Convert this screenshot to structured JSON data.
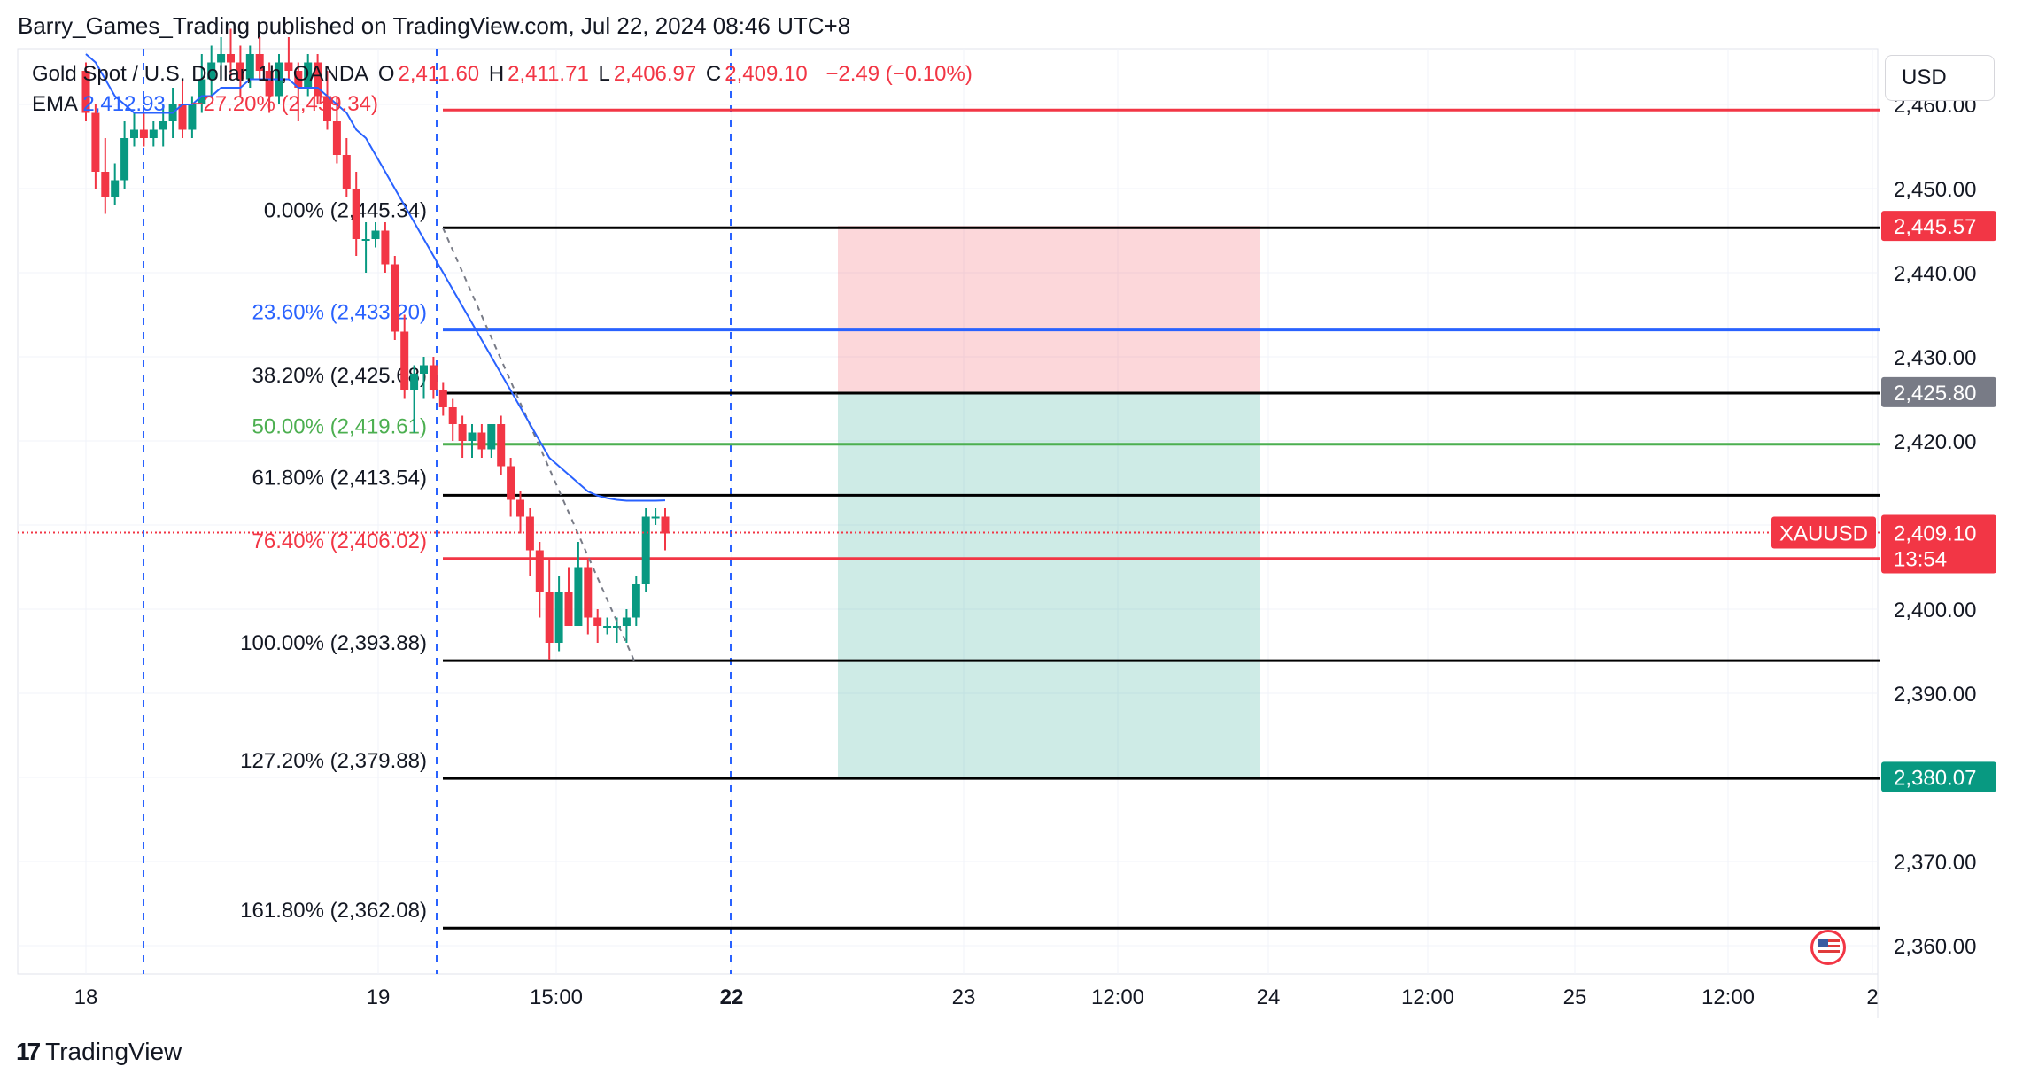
{
  "header": {
    "publisher_line": "Barry_Games_Trading published on TradingView.com, Jul 22, 2024 08:46 UTC+8"
  },
  "symbol_bar": {
    "title": "Gold Spot / U.S. Dollar, 1h, OANDA",
    "o_label": "O",
    "o_value": "2,411.60",
    "h_label": "H",
    "h_value": "2,411.71",
    "l_label": "L",
    "l_value": "2,406.97",
    "c_label": "C",
    "c_value": "2,409.10",
    "change": "−2.49 (−0.10%)",
    "ema_label": "EMA",
    "ema_value": "2,412.93",
    "fib_top_label": "−27.20% (2,459.34)"
  },
  "currency_button": "USD",
  "footer": {
    "brand": "TradingView",
    "logo_glyph": "17"
  },
  "colors": {
    "up": "#089981",
    "down": "#f23645",
    "ema": "#2962ff",
    "fib_blue": "#2962ff",
    "fib_green": "#4caf50",
    "fib_red": "#f23645"
  },
  "chart_data": {
    "type": "candlestick",
    "symbol": "XAUUSD",
    "interval": "1h",
    "ylim": [
      2355,
      2465
    ],
    "y_ticks": [
      2360,
      2370,
      2380,
      2390,
      2400,
      2410,
      2420,
      2430,
      2440,
      2450,
      2460
    ],
    "y_tick_labels": [
      "2,360.00",
      "2,370.00",
      "2,380.00",
      "2,390.00",
      "2,400.00",
      "2,410.00",
      "2,420.00",
      "2,430.00",
      "2,440.00",
      "2,450.00",
      "2,460.00"
    ],
    "x_tick_labels": [
      "18",
      "19",
      "15:00",
      "22",
      "23",
      "12:00",
      "24",
      "12:00",
      "25",
      "12:00",
      "2"
    ],
    "candles": [
      [
        2464,
        2465,
        2458,
        2459
      ],
      [
        2459,
        2460,
        2450,
        2452
      ],
      [
        2452,
        2456,
        2447,
        2449
      ],
      [
        2449,
        2453,
        2448,
        2451
      ],
      [
        2451,
        2458,
        2450,
        2456
      ],
      [
        2456,
        2459,
        2455,
        2457
      ],
      [
        2457,
        2459,
        2455,
        2456
      ],
      [
        2456,
        2458,
        2455,
        2457
      ],
      [
        2457,
        2460,
        2455,
        2458
      ],
      [
        2458,
        2462,
        2456,
        2460
      ],
      [
        2460,
        2463,
        2456,
        2457
      ],
      [
        2457,
        2461,
        2456,
        2460
      ],
      [
        2460,
        2466,
        2459,
        2463
      ],
      [
        2463,
        2467,
        2461,
        2465
      ],
      [
        2465,
        2468,
        2463,
        2466
      ],
      [
        2466,
        2469,
        2463,
        2465
      ],
      [
        2465,
        2467,
        2461,
        2463
      ],
      [
        2463,
        2467,
        2462,
        2466
      ],
      [
        2466,
        2468,
        2463,
        2464
      ],
      [
        2464,
        2465,
        2459,
        2461
      ],
      [
        2461,
        2466,
        2460,
        2465
      ],
      [
        2465,
        2468,
        2463,
        2464
      ],
      [
        2464,
        2465,
        2458,
        2462
      ],
      [
        2462,
        2466,
        2461,
        2465
      ],
      [
        2465,
        2466,
        2460,
        2461
      ],
      [
        2461,
        2464,
        2457,
        2458
      ],
      [
        2458,
        2461,
        2453,
        2454
      ],
      [
        2454,
        2456,
        2449,
        2450
      ],
      [
        2450,
        2452,
        2442,
        2444
      ],
      [
        2444,
        2446,
        2440,
        2444
      ],
      [
        2444,
        2446,
        2443,
        2445
      ],
      [
        2445,
        2446,
        2440,
        2441
      ],
      [
        2441,
        2442,
        2432,
        2433
      ],
      [
        2433,
        2435,
        2425,
        2426
      ],
      [
        2426,
        2429,
        2421,
        2428
      ],
      [
        2428,
        2430,
        2425,
        2429
      ],
      [
        2429,
        2430,
        2425,
        2426
      ],
      [
        2426,
        2427,
        2423,
        2424
      ],
      [
        2424,
        2425,
        2420,
        2422
      ],
      [
        2422,
        2423,
        2418,
        2420
      ],
      [
        2420,
        2422,
        2418,
        2421
      ],
      [
        2421,
        2422,
        2418,
        2419
      ],
      [
        2419,
        2422,
        2418,
        2422
      ],
      [
        2422,
        2423,
        2416,
        2417
      ],
      [
        2417,
        2418,
        2411,
        2413
      ],
      [
        2413,
        2414,
        2409,
        2411
      ],
      [
        2411,
        2412,
        2404,
        2407
      ],
      [
        2407,
        2408,
        2399,
        2402
      ],
      [
        2402,
        2406,
        2394,
        2396
      ],
      [
        2396,
        2404,
        2395,
        2402
      ],
      [
        2402,
        2405,
        2398,
        2398
      ],
      [
        2398,
        2408,
        2398,
        2405
      ],
      [
        2405,
        2406,
        2397,
        2399
      ],
      [
        2399,
        2400,
        2396,
        2398
      ],
      [
        2398,
        2399,
        2397,
        2398
      ],
      [
        2398,
        2399,
        2396,
        2398
      ],
      [
        2398,
        2400,
        2396,
        2399
      ],
      [
        2399,
        2404,
        2398,
        2403
      ],
      [
        2403,
        2412,
        2402,
        2411
      ],
      [
        2411,
        2412,
        2410,
        2411
      ],
      [
        2411,
        2412,
        2407,
        2409
      ]
    ],
    "ema_series": [
      2466,
      2465,
      2463,
      2461,
      2460,
      2459,
      2459,
      2459,
      2459,
      2459,
      2460,
      2460,
      2461,
      2461,
      2462,
      2462,
      2462,
      2463,
      2463,
      2463,
      2463,
      2463,
      2462,
      2462,
      2462,
      2461,
      2460,
      2459,
      2457,
      2456,
      2454,
      2452,
      2450,
      2448,
      2446,
      2444,
      2442,
      2440,
      2438,
      2436,
      2434,
      2432,
      2430,
      2428,
      2426,
      2424,
      2422,
      2420,
      2418,
      2417,
      2416,
      2415,
      2414,
      2413.5,
      2413.2,
      2413.0,
      2412.9,
      2412.9,
      2412.9,
      2412.9,
      2412.93
    ],
    "fib_levels": [
      {
        "label": "-27.20% (2,459.34)",
        "value": 2459.34,
        "color": "#f23645"
      },
      {
        "label": "0.00% (2,445.34)",
        "value": 2445.34,
        "color": "#000000"
      },
      {
        "label": "23.60% (2,433.20)",
        "value": 2433.2,
        "color": "#2962ff"
      },
      {
        "label": "38.20% (2,425.68)",
        "value": 2425.68,
        "color": "#000000"
      },
      {
        "label": "50.00% (2,419.61)",
        "value": 2419.61,
        "color": "#4caf50"
      },
      {
        "label": "61.80% (2,413.54)",
        "value": 2413.54,
        "color": "#000000"
      },
      {
        "label": "76.40% (2,406.02)",
        "value": 2406.02,
        "color": "#f23645"
      },
      {
        "label": "100.00% (2,393.88)",
        "value": 2393.88,
        "color": "#000000"
      },
      {
        "label": "127.20% (2,379.88)",
        "value": 2379.88,
        "color": "#000000"
      },
      {
        "label": "161.80% (2,362.08)",
        "value": 2362.08,
        "color": "#000000"
      }
    ],
    "short_position": {
      "stop": 2445.57,
      "entry": 2425.8,
      "target": 2380.07
    },
    "current_price": 2409.1,
    "price_tags": [
      {
        "text": "2,445.57",
        "value": 2445.57,
        "color": "#f23645"
      },
      {
        "text": "2,425.80",
        "value": 2425.8,
        "color": "#787b86"
      },
      {
        "text": "2,380.07",
        "value": 2380.07,
        "color": "#089981"
      }
    ],
    "last_price_tag": {
      "symbol": "XAUUSD",
      "price": "2,409.10",
      "countdown": "13:54"
    }
  }
}
